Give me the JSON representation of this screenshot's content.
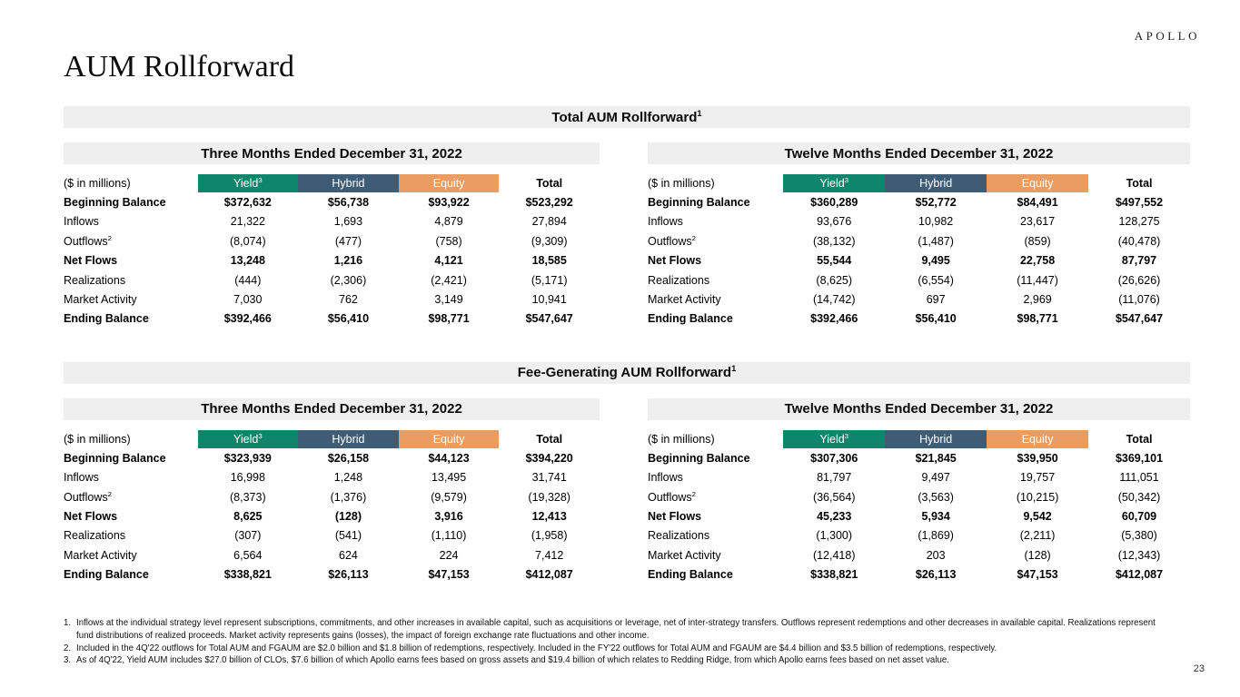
{
  "logo": "APOLLO",
  "page_title": "AUM Rollforward",
  "page_number": "23",
  "colors": {
    "yield": "#0f856b",
    "hybrid": "#3e5c76",
    "equity": "#ea9d62",
    "bar_gray": "#efefef"
  },
  "sections": [
    {
      "title": "Total AUM Rollforward",
      "title_sup": "1",
      "tables": [
        {
          "period": "Three Months Ended December 31, 2022",
          "unit_label": "($ in millions)",
          "columns": [
            {
              "label": "Yield",
              "sup": "3",
              "color": "#0f856b"
            },
            {
              "label": "Hybrid",
              "sup": "",
              "color": "#3e5c76"
            },
            {
              "label": "Equity",
              "sup": "",
              "color": "#ea9d62"
            },
            {
              "label": "Total",
              "sup": "",
              "color": ""
            }
          ],
          "rows": [
            {
              "label": "Beginning Balance",
              "sup": "",
              "bold": true,
              "values": [
                "$372,632",
                "$56,738",
                "$93,922",
                "$523,292"
              ]
            },
            {
              "label": "Inflows",
              "sup": "",
              "bold": false,
              "values": [
                "21,322",
                "1,693",
                "4,879",
                "27,894"
              ]
            },
            {
              "label": "Outflows",
              "sup": "2",
              "bold": false,
              "values": [
                "(8,074)",
                "(477)",
                "(758)",
                "(9,309)"
              ]
            },
            {
              "label": "Net Flows",
              "sup": "",
              "bold": true,
              "values": [
                "13,248",
                "1,216",
                "4,121",
                "18,585"
              ]
            },
            {
              "label": "Realizations",
              "sup": "",
              "bold": false,
              "values": [
                "(444)",
                "(2,306)",
                "(2,421)",
                "(5,171)"
              ]
            },
            {
              "label": "Market Activity",
              "sup": "",
              "bold": false,
              "values": [
                "7,030",
                "762",
                "3,149",
                "10,941"
              ]
            },
            {
              "label": "Ending Balance",
              "sup": "",
              "bold": true,
              "values": [
                "$392,466",
                "$56,410",
                "$98,771",
                "$547,647"
              ]
            }
          ]
        },
        {
          "period": "Twelve Months Ended December 31, 2022",
          "unit_label": "($ in millions)",
          "columns": [
            {
              "label": "Yield",
              "sup": "3",
              "color": "#0f856b"
            },
            {
              "label": "Hybrid",
              "sup": "",
              "color": "#3e5c76"
            },
            {
              "label": "Equity",
              "sup": "",
              "color": "#ea9d62"
            },
            {
              "label": "Total",
              "sup": "",
              "color": ""
            }
          ],
          "rows": [
            {
              "label": "Beginning Balance",
              "sup": "",
              "bold": true,
              "values": [
                "$360,289",
                "$52,772",
                "$84,491",
                "$497,552"
              ]
            },
            {
              "label": "Inflows",
              "sup": "",
              "bold": false,
              "values": [
                "93,676",
                "10,982",
                "23,617",
                "128,275"
              ]
            },
            {
              "label": "Outflows",
              "sup": "2",
              "bold": false,
              "values": [
                "(38,132)",
                "(1,487)",
                "(859)",
                "(40,478)"
              ]
            },
            {
              "label": "Net Flows",
              "sup": "",
              "bold": true,
              "values": [
                "55,544",
                "9,495",
                "22,758",
                "87,797"
              ]
            },
            {
              "label": "Realizations",
              "sup": "",
              "bold": false,
              "values": [
                "(8,625)",
                "(6,554)",
                "(11,447)",
                "(26,626)"
              ]
            },
            {
              "label": "Market Activity",
              "sup": "",
              "bold": false,
              "values": [
                "(14,742)",
                "697",
                "2,969",
                "(11,076)"
              ]
            },
            {
              "label": "Ending Balance",
              "sup": "",
              "bold": true,
              "values": [
                "$392,466",
                "$56,410",
                "$98,771",
                "$547,647"
              ]
            }
          ]
        }
      ]
    },
    {
      "title": "Fee-Generating AUM Rollforward",
      "title_sup": "1",
      "tables": [
        {
          "period": "Three Months Ended December 31, 2022",
          "unit_label": "($ in millions)",
          "columns": [
            {
              "label": "Yield",
              "sup": "3",
              "color": "#0f856b"
            },
            {
              "label": "Hybrid",
              "sup": "",
              "color": "#3e5c76"
            },
            {
              "label": "Equity",
              "sup": "",
              "color": "#ea9d62"
            },
            {
              "label": "Total",
              "sup": "",
              "color": ""
            }
          ],
          "rows": [
            {
              "label": "Beginning Balance",
              "sup": "",
              "bold": true,
              "values": [
                "$323,939",
                "$26,158",
                "$44,123",
                "$394,220"
              ]
            },
            {
              "label": "Inflows",
              "sup": "",
              "bold": false,
              "values": [
                "16,998",
                "1,248",
                "13,495",
                "31,741"
              ]
            },
            {
              "label": "Outflows",
              "sup": "2",
              "bold": false,
              "values": [
                "(8,373)",
                "(1,376)",
                "(9,579)",
                "(19,328)"
              ]
            },
            {
              "label": "Net Flows",
              "sup": "",
              "bold": true,
              "values": [
                "8,625",
                "(128)",
                "3,916",
                "12,413"
              ]
            },
            {
              "label": "Realizations",
              "sup": "",
              "bold": false,
              "values": [
                "(307)",
                "(541)",
                "(1,110)",
                "(1,958)"
              ]
            },
            {
              "label": "Market Activity",
              "sup": "",
              "bold": false,
              "values": [
                "6,564",
                "624",
                "224",
                "7,412"
              ]
            },
            {
              "label": "Ending Balance",
              "sup": "",
              "bold": true,
              "values": [
                "$338,821",
                "$26,113",
                "$47,153",
                "$412,087"
              ]
            }
          ]
        },
        {
          "period": "Twelve Months Ended December 31, 2022",
          "unit_label": "($ in millions)",
          "columns": [
            {
              "label": "Yield",
              "sup": "3",
              "color": "#0f856b"
            },
            {
              "label": "Hybrid",
              "sup": "",
              "color": "#3e5c76"
            },
            {
              "label": "Equity",
              "sup": "",
              "color": "#ea9d62"
            },
            {
              "label": "Total",
              "sup": "",
              "color": ""
            }
          ],
          "rows": [
            {
              "label": "Beginning Balance",
              "sup": "",
              "bold": true,
              "values": [
                "$307,306",
                "$21,845",
                "$39,950",
                "$369,101"
              ]
            },
            {
              "label": "Inflows",
              "sup": "",
              "bold": false,
              "values": [
                "81,797",
                "9,497",
                "19,757",
                "111,051"
              ]
            },
            {
              "label": "Outflows",
              "sup": "2",
              "bold": false,
              "values": [
                "(36,564)",
                "(3,563)",
                "(10,215)",
                "(50,342)"
              ]
            },
            {
              "label": "Net Flows",
              "sup": "",
              "bold": true,
              "values": [
                "45,233",
                "5,934",
                "9,542",
                "60,709"
              ]
            },
            {
              "label": "Realizations",
              "sup": "",
              "bold": false,
              "values": [
                "(1,300)",
                "(1,869)",
                "(2,211)",
                "(5,380)"
              ]
            },
            {
              "label": "Market Activity",
              "sup": "",
              "bold": false,
              "values": [
                "(12,418)",
                "203",
                "(128)",
                "(12,343)"
              ]
            },
            {
              "label": "Ending Balance",
              "sup": "",
              "bold": true,
              "values": [
                "$338,821",
                "$26,113",
                "$47,153",
                "$412,087"
              ]
            }
          ]
        }
      ]
    }
  ],
  "footnotes": [
    {
      "num": "1.",
      "text": "Inflows at the individual strategy level represent subscriptions, commitments, and other increases in available capital, such as acquisitions or leverage, net of inter-strategy transfers. Outflows represent redemptions and other decreases in available capital. Realizations represent fund distributions of realized proceeds. Market activity represents gains (losses), the impact of foreign exchange rate fluctuations and other income."
    },
    {
      "num": "2.",
      "text": "Included in the 4Q'22 outflows for Total AUM and FGAUM are $2.0 billion and $1.8 billion of redemptions, respectively. Included in the FY'22 outflows for Total AUM and FGAUM are $4.4 billion and $3.5 billion of redemptions, respectively."
    },
    {
      "num": "3.",
      "text": "As of 4Q'22, Yield AUM includes $27.0 billion of CLOs, $7.6 billion of which Apollo earns fees based on gross assets and $19.4 billion of which relates to Redding Ridge, from which Apollo earns fees based on net asset value."
    }
  ]
}
